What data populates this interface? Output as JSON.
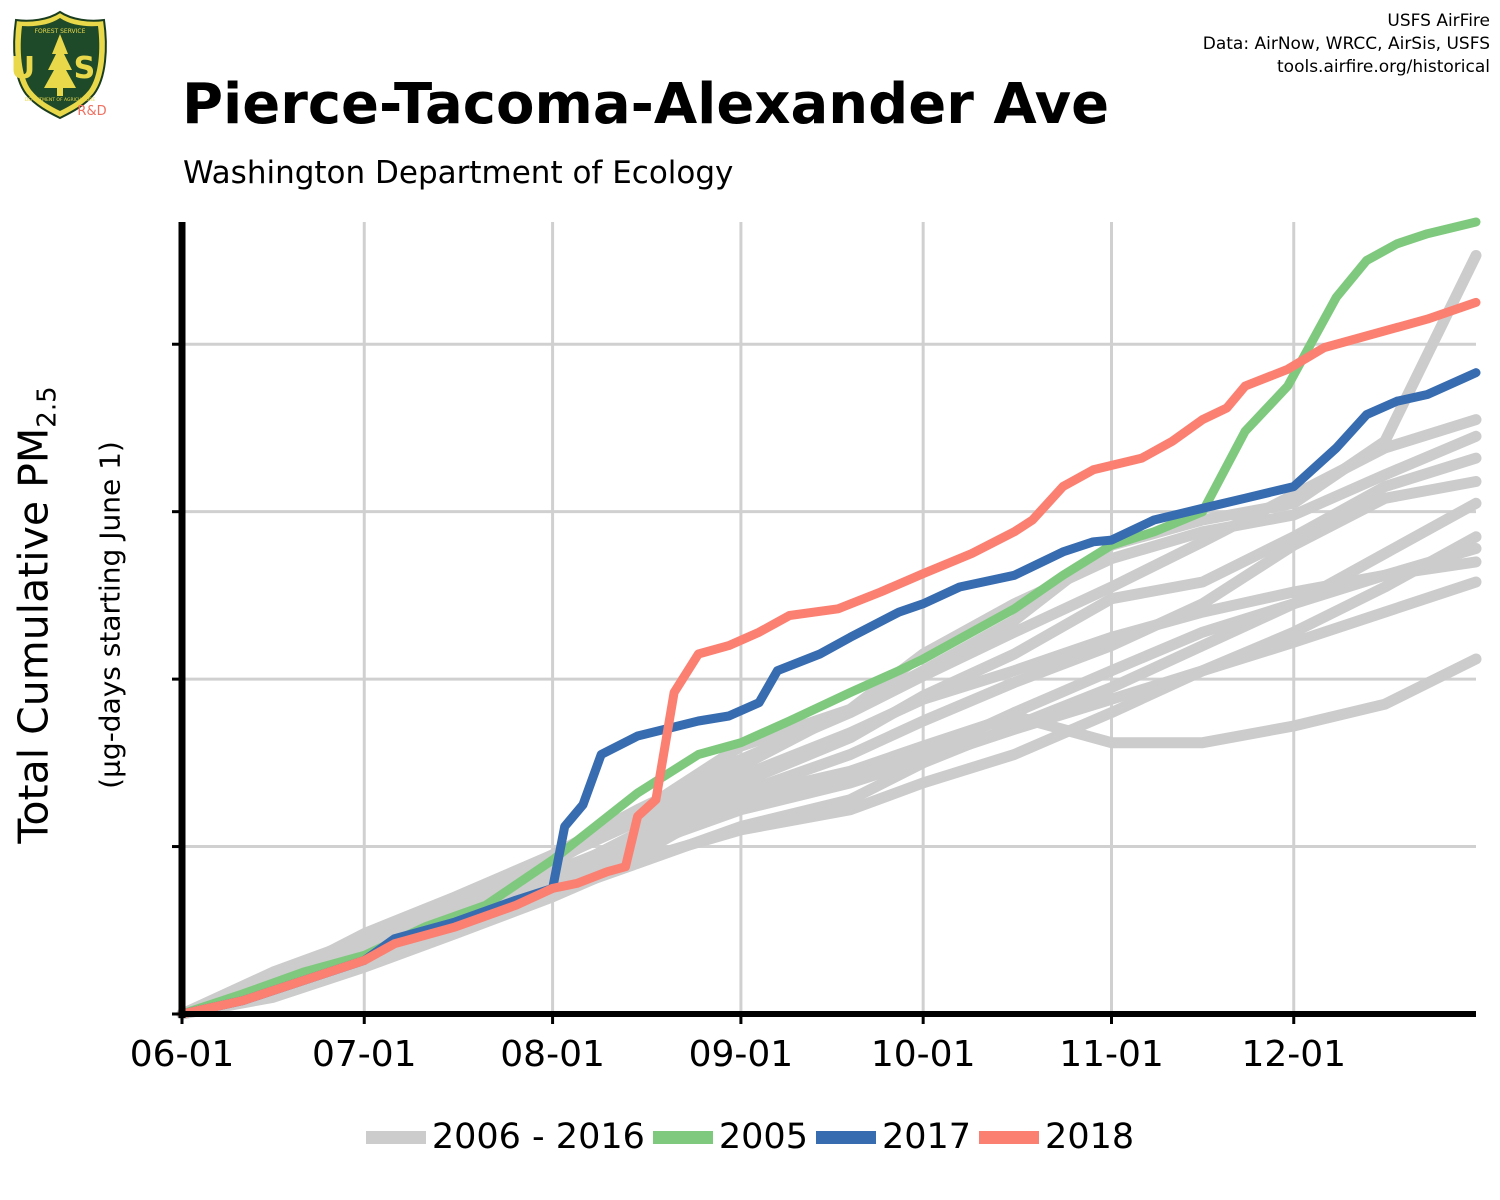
{
  "header": {
    "title": "Pierce-Tacoma-Alexander Ave",
    "subtitle": "Washington Department of Ecology"
  },
  "credits": {
    "line1": "USFS AirFire",
    "line2": "Data: AirNow, WRCC, AirSis, USFS",
    "line3": "tools.airfire.org/historical"
  },
  "logo": {
    "top_text": "FOREST SERVICE",
    "letters": "U S",
    "bottom_text": "DEPARTMENT OF AGRICULTURE",
    "tag": "R&D"
  },
  "colors": {
    "historical": "#cccccc",
    "y2005": "#7fc97f",
    "y2017": "#386cb0",
    "y2018": "#fb8072",
    "grid": "#d0d0d0",
    "axis": "#000000"
  },
  "chart_data": {
    "type": "line",
    "title": "Pierce-Tacoma-Alexander Ave",
    "subtitle": "Washington Department of Ecology",
    "ylabel_main": "Total Cumulative PM",
    "ylabel_sub_script": "2.5",
    "ylabel_units": "(µg-days starting June 1)",
    "x_unit": "days since June 1",
    "x_ticks": [
      {
        "label": "06-01",
        "day": 0
      },
      {
        "label": "07-01",
        "day": 30
      },
      {
        "label": "08-01",
        "day": 61
      },
      {
        "label": "09-01",
        "day": 92
      },
      {
        "label": "10-01",
        "day": 122
      },
      {
        "label": "11-01",
        "day": 153
      },
      {
        "label": "12-01",
        "day": 183
      }
    ],
    "xlim": [
      0,
      213
    ],
    "ylim": [
      0,
      4.73
    ],
    "y_ticks": [
      0,
      1,
      2,
      3,
      4
    ],
    "y_tick_labels_shown": false,
    "grid": true,
    "legend_position": "bottom",
    "series": [
      {
        "name": "2006 - 2016",
        "group": "historical",
        "lines": [
          [
            [
              0,
              0
            ],
            [
              15,
              0.12
            ],
            [
              30,
              0.32
            ],
            [
              45,
              0.5
            ],
            [
              61,
              0.72
            ],
            [
              75,
              0.95
            ],
            [
              92,
              1.3
            ],
            [
              110,
              1.45
            ],
            [
              122,
              1.6
            ],
            [
              137,
              1.78
            ],
            [
              153,
              1.62
            ],
            [
              168,
              1.62
            ],
            [
              183,
              1.72
            ],
            [
              198,
              1.85
            ],
            [
              213,
              2.12
            ]
          ],
          [
            [
              0,
              0
            ],
            [
              15,
              0.2
            ],
            [
              30,
              0.4
            ],
            [
              45,
              0.62
            ],
            [
              61,
              0.9
            ],
            [
              75,
              1.2
            ],
            [
              92,
              1.6
            ],
            [
              110,
              1.82
            ],
            [
              122,
              2.05
            ],
            [
              137,
              2.35
            ],
            [
              153,
              2.8
            ],
            [
              168,
              2.95
            ],
            [
              183,
              3.05
            ],
            [
              198,
              3.42
            ],
            [
              213,
              4.53
            ]
          ],
          [
            [
              0,
              0
            ],
            [
              15,
              0.25
            ],
            [
              30,
              0.45
            ],
            [
              45,
              0.68
            ],
            [
              61,
              0.95
            ],
            [
              75,
              1.22
            ],
            [
              92,
              1.52
            ],
            [
              110,
              1.8
            ],
            [
              122,
              2.02
            ],
            [
              137,
              2.28
            ],
            [
              153,
              2.55
            ],
            [
              168,
              2.82
            ],
            [
              183,
              3.1
            ],
            [
              198,
              3.38
            ],
            [
              213,
              3.55
            ]
          ],
          [
            [
              0,
              0
            ],
            [
              15,
              0.18
            ],
            [
              30,
              0.38
            ],
            [
              45,
              0.58
            ],
            [
              61,
              0.82
            ],
            [
              75,
              1.08
            ],
            [
              92,
              1.38
            ],
            [
              110,
              1.65
            ],
            [
              122,
              1.9
            ],
            [
              137,
              2.15
            ],
            [
              153,
              2.48
            ],
            [
              168,
              2.58
            ],
            [
              183,
              2.85
            ],
            [
              198,
              3.15
            ],
            [
              213,
              3.32
            ]
          ],
          [
            [
              0,
              0
            ],
            [
              15,
              0.22
            ],
            [
              30,
              0.42
            ],
            [
              45,
              0.65
            ],
            [
              61,
              0.92
            ],
            [
              75,
              1.15
            ],
            [
              92,
              1.42
            ],
            [
              110,
              1.68
            ],
            [
              122,
              1.88
            ],
            [
              137,
              2.05
            ],
            [
              153,
              2.25
            ],
            [
              168,
              2.4
            ],
            [
              183,
              2.52
            ],
            [
              198,
              2.62
            ],
            [
              213,
              2.7
            ]
          ],
          [
            [
              0,
              0
            ],
            [
              15,
              0.15
            ],
            [
              30,
              0.35
            ],
            [
              45,
              0.52
            ],
            [
              61,
              0.75
            ],
            [
              75,
              0.98
            ],
            [
              92,
              1.25
            ],
            [
              110,
              1.42
            ],
            [
              122,
              1.55
            ],
            [
              137,
              1.8
            ],
            [
              153,
              2.05
            ],
            [
              168,
              2.28
            ],
            [
              183,
              2.45
            ],
            [
              198,
              2.62
            ],
            [
              213,
              2.78
            ]
          ],
          [
            [
              0,
              0
            ],
            [
              15,
              0.1
            ],
            [
              30,
              0.28
            ],
            [
              45,
              0.48
            ],
            [
              61,
              0.7
            ],
            [
              75,
              0.92
            ],
            [
              92,
              1.1
            ],
            [
              110,
              1.22
            ],
            [
              122,
              1.38
            ],
            [
              137,
              1.55
            ],
            [
              153,
              1.8
            ],
            [
              168,
              2.05
            ],
            [
              183,
              2.28
            ],
            [
              198,
              2.55
            ],
            [
              213,
              2.85
            ]
          ],
          [
            [
              0,
              0
            ],
            [
              15,
              0.22
            ],
            [
              30,
              0.42
            ],
            [
              45,
              0.6
            ],
            [
              61,
              0.85
            ],
            [
              75,
              1.05
            ],
            [
              92,
              1.32
            ],
            [
              110,
              1.55
            ],
            [
              122,
              1.75
            ],
            [
              137,
              1.98
            ],
            [
              153,
              2.2
            ],
            [
              168,
              2.45
            ],
            [
              183,
              2.8
            ],
            [
              198,
              3.08
            ],
            [
              213,
              3.18
            ]
          ],
          [
            [
              0,
              0
            ],
            [
              15,
              0.2
            ],
            [
              30,
              0.48
            ],
            [
              45,
              0.7
            ],
            [
              61,
              0.95
            ],
            [
              75,
              1.18
            ],
            [
              92,
              1.48
            ],
            [
              110,
              1.82
            ],
            [
              122,
              2.15
            ],
            [
              137,
              2.45
            ],
            [
              153,
              2.72
            ],
            [
              168,
              2.88
            ],
            [
              183,
              2.98
            ],
            [
              198,
              3.22
            ],
            [
              213,
              3.45
            ]
          ],
          [
            [
              0,
              0
            ],
            [
              15,
              0.12
            ],
            [
              30,
              0.3
            ],
            [
              45,
              0.5
            ],
            [
              61,
              0.72
            ],
            [
              75,
              0.9
            ],
            [
              92,
              1.12
            ],
            [
              110,
              1.28
            ],
            [
              122,
              1.5
            ],
            [
              137,
              1.72
            ],
            [
              153,
              1.95
            ],
            [
              168,
              2.2
            ],
            [
              183,
              2.45
            ],
            [
              198,
              2.75
            ],
            [
              213,
              3.05
            ]
          ],
          [
            [
              0,
              0
            ],
            [
              15,
              0.15
            ],
            [
              30,
              0.35
            ],
            [
              45,
              0.55
            ],
            [
              61,
              0.8
            ],
            [
              75,
              1.0
            ],
            [
              92,
              1.22
            ],
            [
              110,
              1.38
            ],
            [
              122,
              1.52
            ],
            [
              137,
              1.7
            ],
            [
              153,
              1.88
            ],
            [
              168,
              2.05
            ],
            [
              183,
              2.22
            ],
            [
              198,
              2.4
            ],
            [
              213,
              2.58
            ]
          ]
        ]
      },
      {
        "name": "2005",
        "group": "y2005",
        "points": [
          [
            0,
            0
          ],
          [
            10,
            0.12
          ],
          [
            20,
            0.25
          ],
          [
            30,
            0.35
          ],
          [
            40,
            0.52
          ],
          [
            50,
            0.65
          ],
          [
            61,
            0.92
          ],
          [
            68,
            1.12
          ],
          [
            75,
            1.32
          ],
          [
            85,
            1.55
          ],
          [
            92,
            1.62
          ],
          [
            100,
            1.75
          ],
          [
            110,
            1.92
          ],
          [
            118,
            2.05
          ],
          [
            122,
            2.12
          ],
          [
            130,
            2.28
          ],
          [
            137,
            2.42
          ],
          [
            145,
            2.62
          ],
          [
            153,
            2.8
          ],
          [
            160,
            2.88
          ],
          [
            168,
            3.0
          ],
          [
            175,
            3.48
          ],
          [
            182,
            3.75
          ],
          [
            190,
            4.28
          ],
          [
            195,
            4.5
          ],
          [
            200,
            4.6
          ],
          [
            205,
            4.66
          ],
          [
            213,
            4.73
          ]
        ]
      },
      {
        "name": "2017",
        "group": "y2017",
        "points": [
          [
            0,
            0
          ],
          [
            10,
            0.08
          ],
          [
            20,
            0.2
          ],
          [
            30,
            0.32
          ],
          [
            35,
            0.45
          ],
          [
            45,
            0.55
          ],
          [
            55,
            0.68
          ],
          [
            61,
            0.75
          ],
          [
            63,
            1.12
          ],
          [
            66,
            1.25
          ],
          [
            69,
            1.55
          ],
          [
            75,
            1.66
          ],
          [
            85,
            1.75
          ],
          [
            90,
            1.78
          ],
          [
            95,
            1.86
          ],
          [
            98,
            2.05
          ],
          [
            105,
            2.15
          ],
          [
            110,
            2.25
          ],
          [
            118,
            2.4
          ],
          [
            122,
            2.45
          ],
          [
            128,
            2.55
          ],
          [
            137,
            2.62
          ],
          [
            145,
            2.76
          ],
          [
            150,
            2.82
          ],
          [
            153,
            2.83
          ],
          [
            160,
            2.95
          ],
          [
            168,
            3.02
          ],
          [
            175,
            3.08
          ],
          [
            183,
            3.15
          ],
          [
            190,
            3.38
          ],
          [
            195,
            3.58
          ],
          [
            200,
            3.66
          ],
          [
            205,
            3.7
          ],
          [
            213,
            3.83
          ]
        ]
      },
      {
        "name": "2018",
        "group": "y2018",
        "points": [
          [
            0,
            0
          ],
          [
            10,
            0.08
          ],
          [
            20,
            0.2
          ],
          [
            30,
            0.32
          ],
          [
            35,
            0.42
          ],
          [
            45,
            0.52
          ],
          [
            55,
            0.65
          ],
          [
            61,
            0.75
          ],
          [
            65,
            0.78
          ],
          [
            70,
            0.85
          ],
          [
            73,
            0.88
          ],
          [
            75,
            1.18
          ],
          [
            78,
            1.28
          ],
          [
            81,
            1.92
          ],
          [
            85,
            2.15
          ],
          [
            90,
            2.2
          ],
          [
            95,
            2.28
          ],
          [
            100,
            2.38
          ],
          [
            108,
            2.42
          ],
          [
            115,
            2.52
          ],
          [
            122,
            2.63
          ],
          [
            130,
            2.75
          ],
          [
            137,
            2.88
          ],
          [
            140,
            2.95
          ],
          [
            145,
            3.15
          ],
          [
            150,
            3.25
          ],
          [
            158,
            3.32
          ],
          [
            163,
            3.42
          ],
          [
            168,
            3.55
          ],
          [
            172,
            3.62
          ],
          [
            175,
            3.75
          ],
          [
            182,
            3.85
          ],
          [
            188,
            3.98
          ],
          [
            195,
            4.05
          ],
          [
            200,
            4.1
          ],
          [
            205,
            4.15
          ],
          [
            213,
            4.25
          ]
        ]
      }
    ]
  },
  "legend": {
    "items": [
      {
        "label": "2006 - 2016",
        "color_key": "historical"
      },
      {
        "label": "2005",
        "color_key": "y2005"
      },
      {
        "label": "2017",
        "color_key": "y2017"
      },
      {
        "label": "2018",
        "color_key": "y2018"
      }
    ]
  }
}
